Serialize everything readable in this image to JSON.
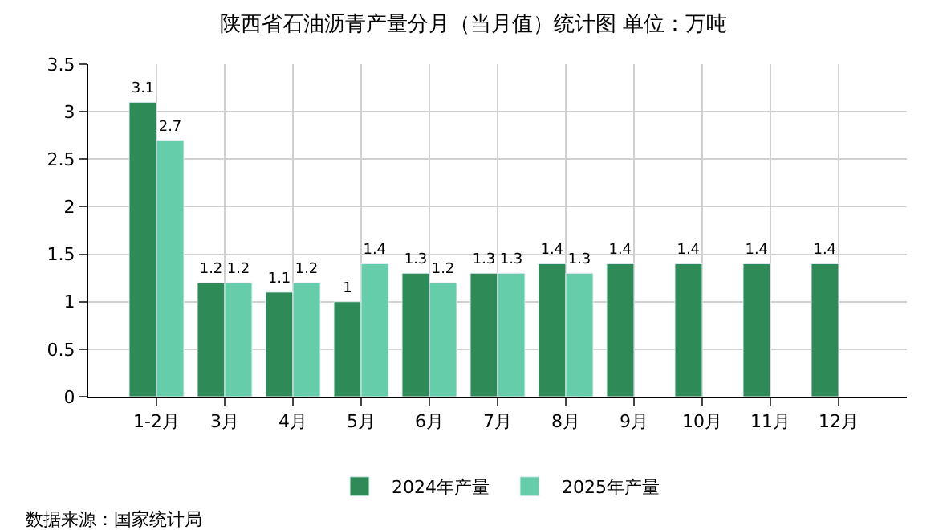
{
  "chart_data": {
    "type": "bar",
    "title": "陕西省石油沥青产量分月（当月值）统计图 单位：万吨",
    "categories": [
      "1-2月",
      "3月",
      "4月",
      "5月",
      "6月",
      "7月",
      "8月",
      "9月",
      "10月",
      "11月",
      "12月"
    ],
    "series": [
      {
        "name": "2024年产量",
        "color": "#2e8b57",
        "values": [
          3.1,
          1.2,
          1.1,
          1,
          1.3,
          1.3,
          1.4,
          1.4,
          1.4,
          1.4,
          1.4
        ]
      },
      {
        "name": "2025年产量",
        "color": "#66cdaa",
        "values": [
          2.7,
          1.2,
          1.2,
          1.4,
          1.2,
          1.3,
          1.3,
          null,
          null,
          null,
          null
        ]
      }
    ],
    "ylim": [
      0,
      3.5
    ],
    "yticks": [
      0,
      0.5,
      1,
      1.5,
      2,
      2.5,
      3,
      3.5
    ],
    "grid": true,
    "legend": "bottom",
    "data_labels": true,
    "annotations": [
      "数据来源：国家统计局"
    ]
  }
}
